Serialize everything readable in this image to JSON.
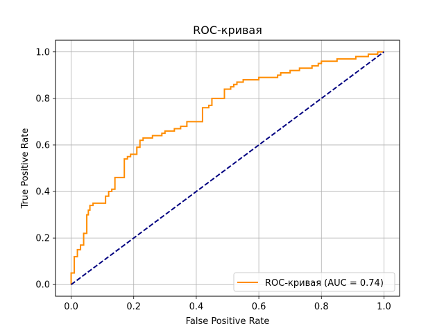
{
  "chart_data": {
    "type": "line",
    "title": "ROC-кривая",
    "xlabel": "False Positive Rate",
    "ylabel": "True Positive Rate",
    "xlim": [
      -0.05,
      1.05
    ],
    "ylim": [
      -0.05,
      1.05
    ],
    "xticks": [
      0.0,
      0.2,
      0.4,
      0.6,
      0.8,
      1.0
    ],
    "yticks": [
      0.0,
      0.2,
      0.4,
      0.6,
      0.8,
      1.0
    ],
    "xtick_labels": [
      "0.0",
      "0.2",
      "0.4",
      "0.6",
      "0.8",
      "1.0"
    ],
    "ytick_labels": [
      "0.0",
      "0.2",
      "0.4",
      "0.6",
      "0.8",
      "1.0"
    ],
    "grid": true,
    "legend_position": "lower-right",
    "series": [
      {
        "name": "ROC-кривая (AUC = 0.74)",
        "color": "#ff8c00",
        "style": "solid",
        "step": true,
        "x": [
          0.0,
          0.0,
          0.01,
          0.01,
          0.02,
          0.02,
          0.03,
          0.03,
          0.04,
          0.04,
          0.05,
          0.05,
          0.055,
          0.055,
          0.06,
          0.06,
          0.07,
          0.07,
          0.11,
          0.11,
          0.12,
          0.12,
          0.13,
          0.13,
          0.14,
          0.14,
          0.17,
          0.17,
          0.18,
          0.18,
          0.19,
          0.19,
          0.21,
          0.21,
          0.22,
          0.22,
          0.23,
          0.23,
          0.26,
          0.26,
          0.29,
          0.29,
          0.3,
          0.3,
          0.33,
          0.33,
          0.35,
          0.35,
          0.37,
          0.37,
          0.42,
          0.42,
          0.44,
          0.44,
          0.45,
          0.45,
          0.49,
          0.49,
          0.51,
          0.51,
          0.52,
          0.52,
          0.53,
          0.53,
          0.55,
          0.55,
          0.6,
          0.6,
          0.66,
          0.66,
          0.67,
          0.67,
          0.7,
          0.7,
          0.73,
          0.73,
          0.77,
          0.77,
          0.79,
          0.79,
          0.8,
          0.8,
          0.85,
          0.85,
          0.91,
          0.91,
          0.95,
          0.95,
          0.98,
          0.98,
          1.0
        ],
        "y": [
          0.0,
          0.05,
          0.05,
          0.12,
          0.12,
          0.15,
          0.15,
          0.17,
          0.17,
          0.22,
          0.22,
          0.3,
          0.3,
          0.32,
          0.32,
          0.34,
          0.34,
          0.35,
          0.35,
          0.38,
          0.38,
          0.4,
          0.4,
          0.41,
          0.41,
          0.46,
          0.46,
          0.54,
          0.54,
          0.55,
          0.55,
          0.56,
          0.56,
          0.59,
          0.59,
          0.62,
          0.62,
          0.63,
          0.63,
          0.64,
          0.64,
          0.65,
          0.65,
          0.66,
          0.66,
          0.67,
          0.67,
          0.68,
          0.68,
          0.7,
          0.7,
          0.76,
          0.76,
          0.77,
          0.77,
          0.8,
          0.8,
          0.84,
          0.84,
          0.85,
          0.85,
          0.86,
          0.86,
          0.87,
          0.87,
          0.88,
          0.88,
          0.89,
          0.89,
          0.9,
          0.9,
          0.91,
          0.91,
          0.92,
          0.92,
          0.93,
          0.93,
          0.94,
          0.94,
          0.95,
          0.95,
          0.96,
          0.96,
          0.97,
          0.97,
          0.98,
          0.98,
          0.99,
          0.99,
          1.0,
          1.0
        ]
      },
      {
        "name": "",
        "color": "#000080",
        "style": "dashed",
        "x": [
          0.0,
          1.0
        ],
        "y": [
          0.0,
          1.0
        ]
      }
    ]
  }
}
